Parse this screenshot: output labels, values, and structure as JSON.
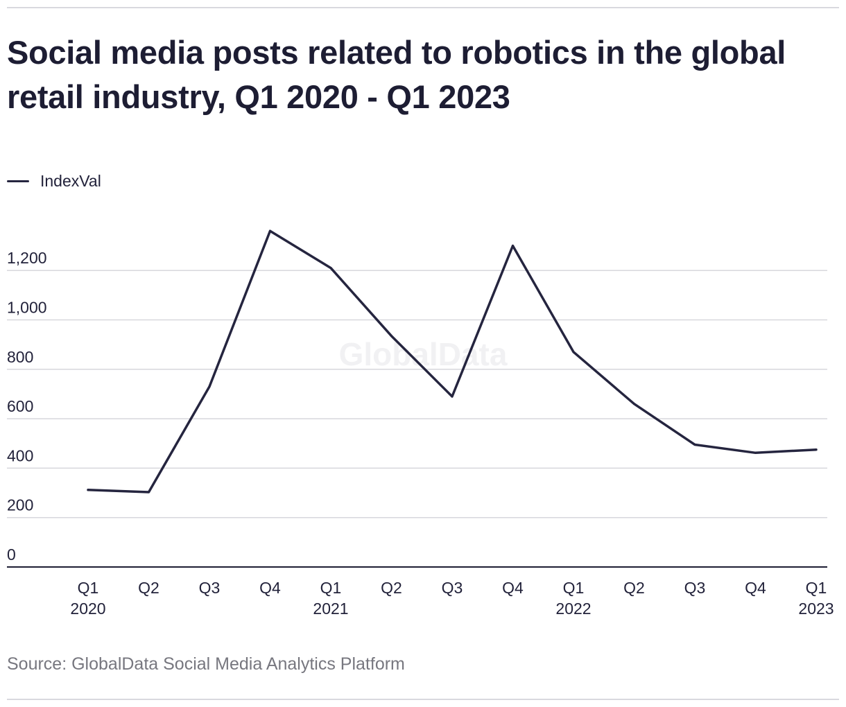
{
  "title": "Social media posts related to robotics in the global retail industry, Q1 2020 - Q1 2023",
  "source": "Source: GlobalData Social Media Analytics Platform",
  "watermark": "GlobalData",
  "colors": {
    "line": "#25253f",
    "grid": "#d7d7dc",
    "axis": "#1d1d33",
    "watermark": "#f1f1f3"
  },
  "chart_data": {
    "type": "line",
    "title": "Social media posts related to robotics in the global retail industry, Q1 2020 - Q1 2023",
    "xlabel": "",
    "ylabel": "",
    "ylim": [
      0,
      1200
    ],
    "yticks": [
      "0",
      "200",
      "400",
      "600",
      "800",
      "1,000",
      "1,200"
    ],
    "grid": true,
    "legend_position": "top-left",
    "categories": [
      [
        "Q1",
        "2020"
      ],
      [
        "Q2",
        ""
      ],
      [
        "Q3",
        ""
      ],
      [
        "Q4",
        ""
      ],
      [
        "Q1",
        "2021"
      ],
      [
        "Q2",
        ""
      ],
      [
        "Q3",
        ""
      ],
      [
        "Q4",
        ""
      ],
      [
        "Q1",
        "2022"
      ],
      [
        "Q2",
        ""
      ],
      [
        "Q3",
        ""
      ],
      [
        "Q4",
        ""
      ],
      [
        "Q1",
        "2023"
      ]
    ],
    "series": [
      {
        "name": "IndexVal",
        "values": [
          312,
          303,
          730,
          1360,
          1210,
          935,
          690,
          1300,
          870,
          660,
          495,
          462,
          475
        ]
      }
    ]
  }
}
